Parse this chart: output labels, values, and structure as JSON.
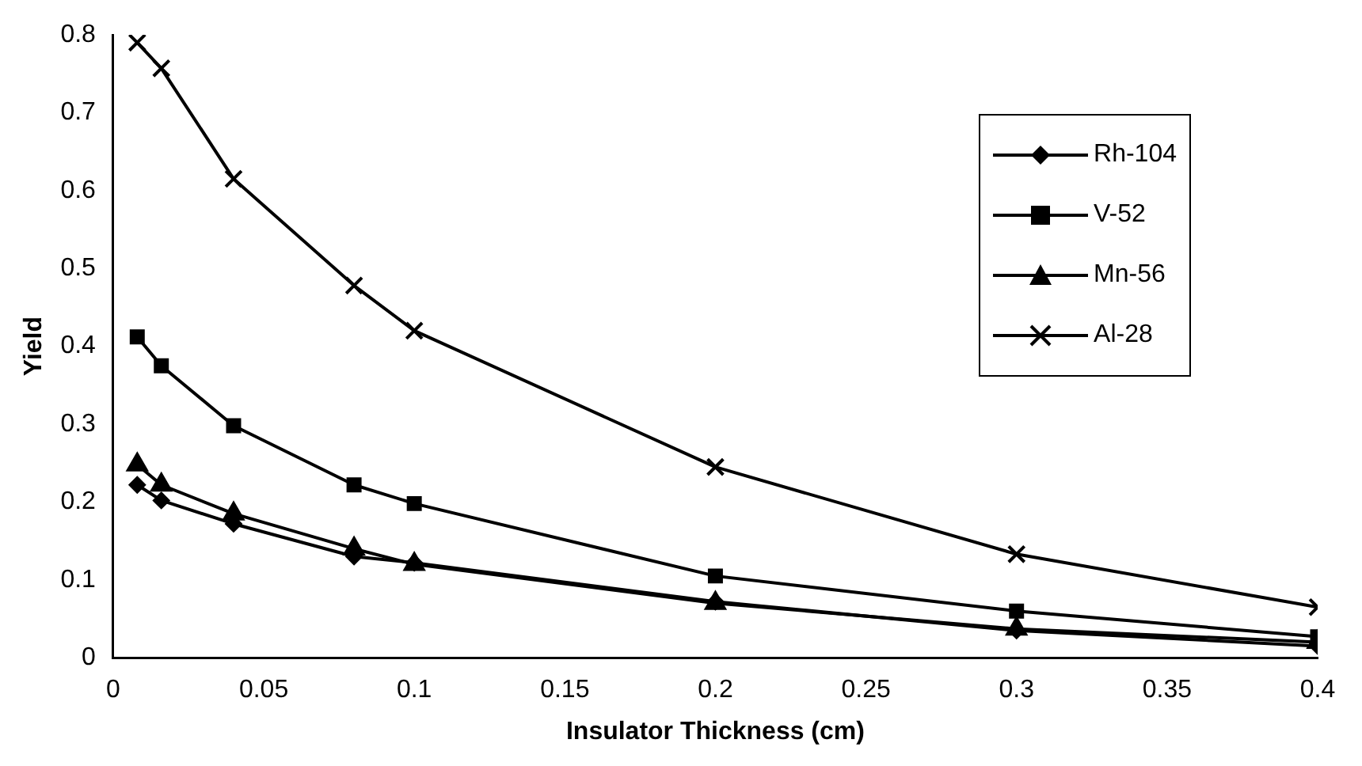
{
  "chart_data": {
    "type": "line",
    "xlabel": "Insulator Thickness (cm)",
    "ylabel": "Yield",
    "x": [
      0.008,
      0.016,
      0.04,
      0.08,
      0.1,
      0.2,
      0.3,
      0.4
    ],
    "xlim": [
      0,
      0.4
    ],
    "xticks": [
      0,
      0.05,
      0.1,
      0.15,
      0.2,
      0.25,
      0.3,
      0.35,
      0.4
    ],
    "ylim": [
      0,
      0.8
    ],
    "yticks": [
      0,
      0.1,
      0.2,
      0.3,
      0.4,
      0.5,
      0.6,
      0.7,
      0.8
    ],
    "grid": false,
    "legend": "top right",
    "line_style": "solid",
    "series": [
      {
        "name": "Rh-104",
        "color": "#000000",
        "marker": "diamond",
        "values": [
          0.222,
          0.202,
          0.172,
          0.13,
          0.122,
          0.072,
          0.035,
          0.015
        ]
      },
      {
        "name": "V-52",
        "color": "#000000",
        "marker": "square",
        "values": [
          0.412,
          0.375,
          0.298,
          0.222,
          0.198,
          0.105,
          0.06,
          0.027
        ]
      },
      {
        "name": "Mn-56",
        "color": "#000000",
        "marker": "triangle",
        "values": [
          0.248,
          0.222,
          0.185,
          0.14,
          0.12,
          0.07,
          0.037,
          0.02
        ]
      },
      {
        "name": "Al-28",
        "color": "#000000",
        "marker": "cross",
        "values": [
          0.79,
          0.757,
          0.615,
          0.478,
          0.42,
          0.245,
          0.133,
          0.065
        ]
      }
    ]
  }
}
